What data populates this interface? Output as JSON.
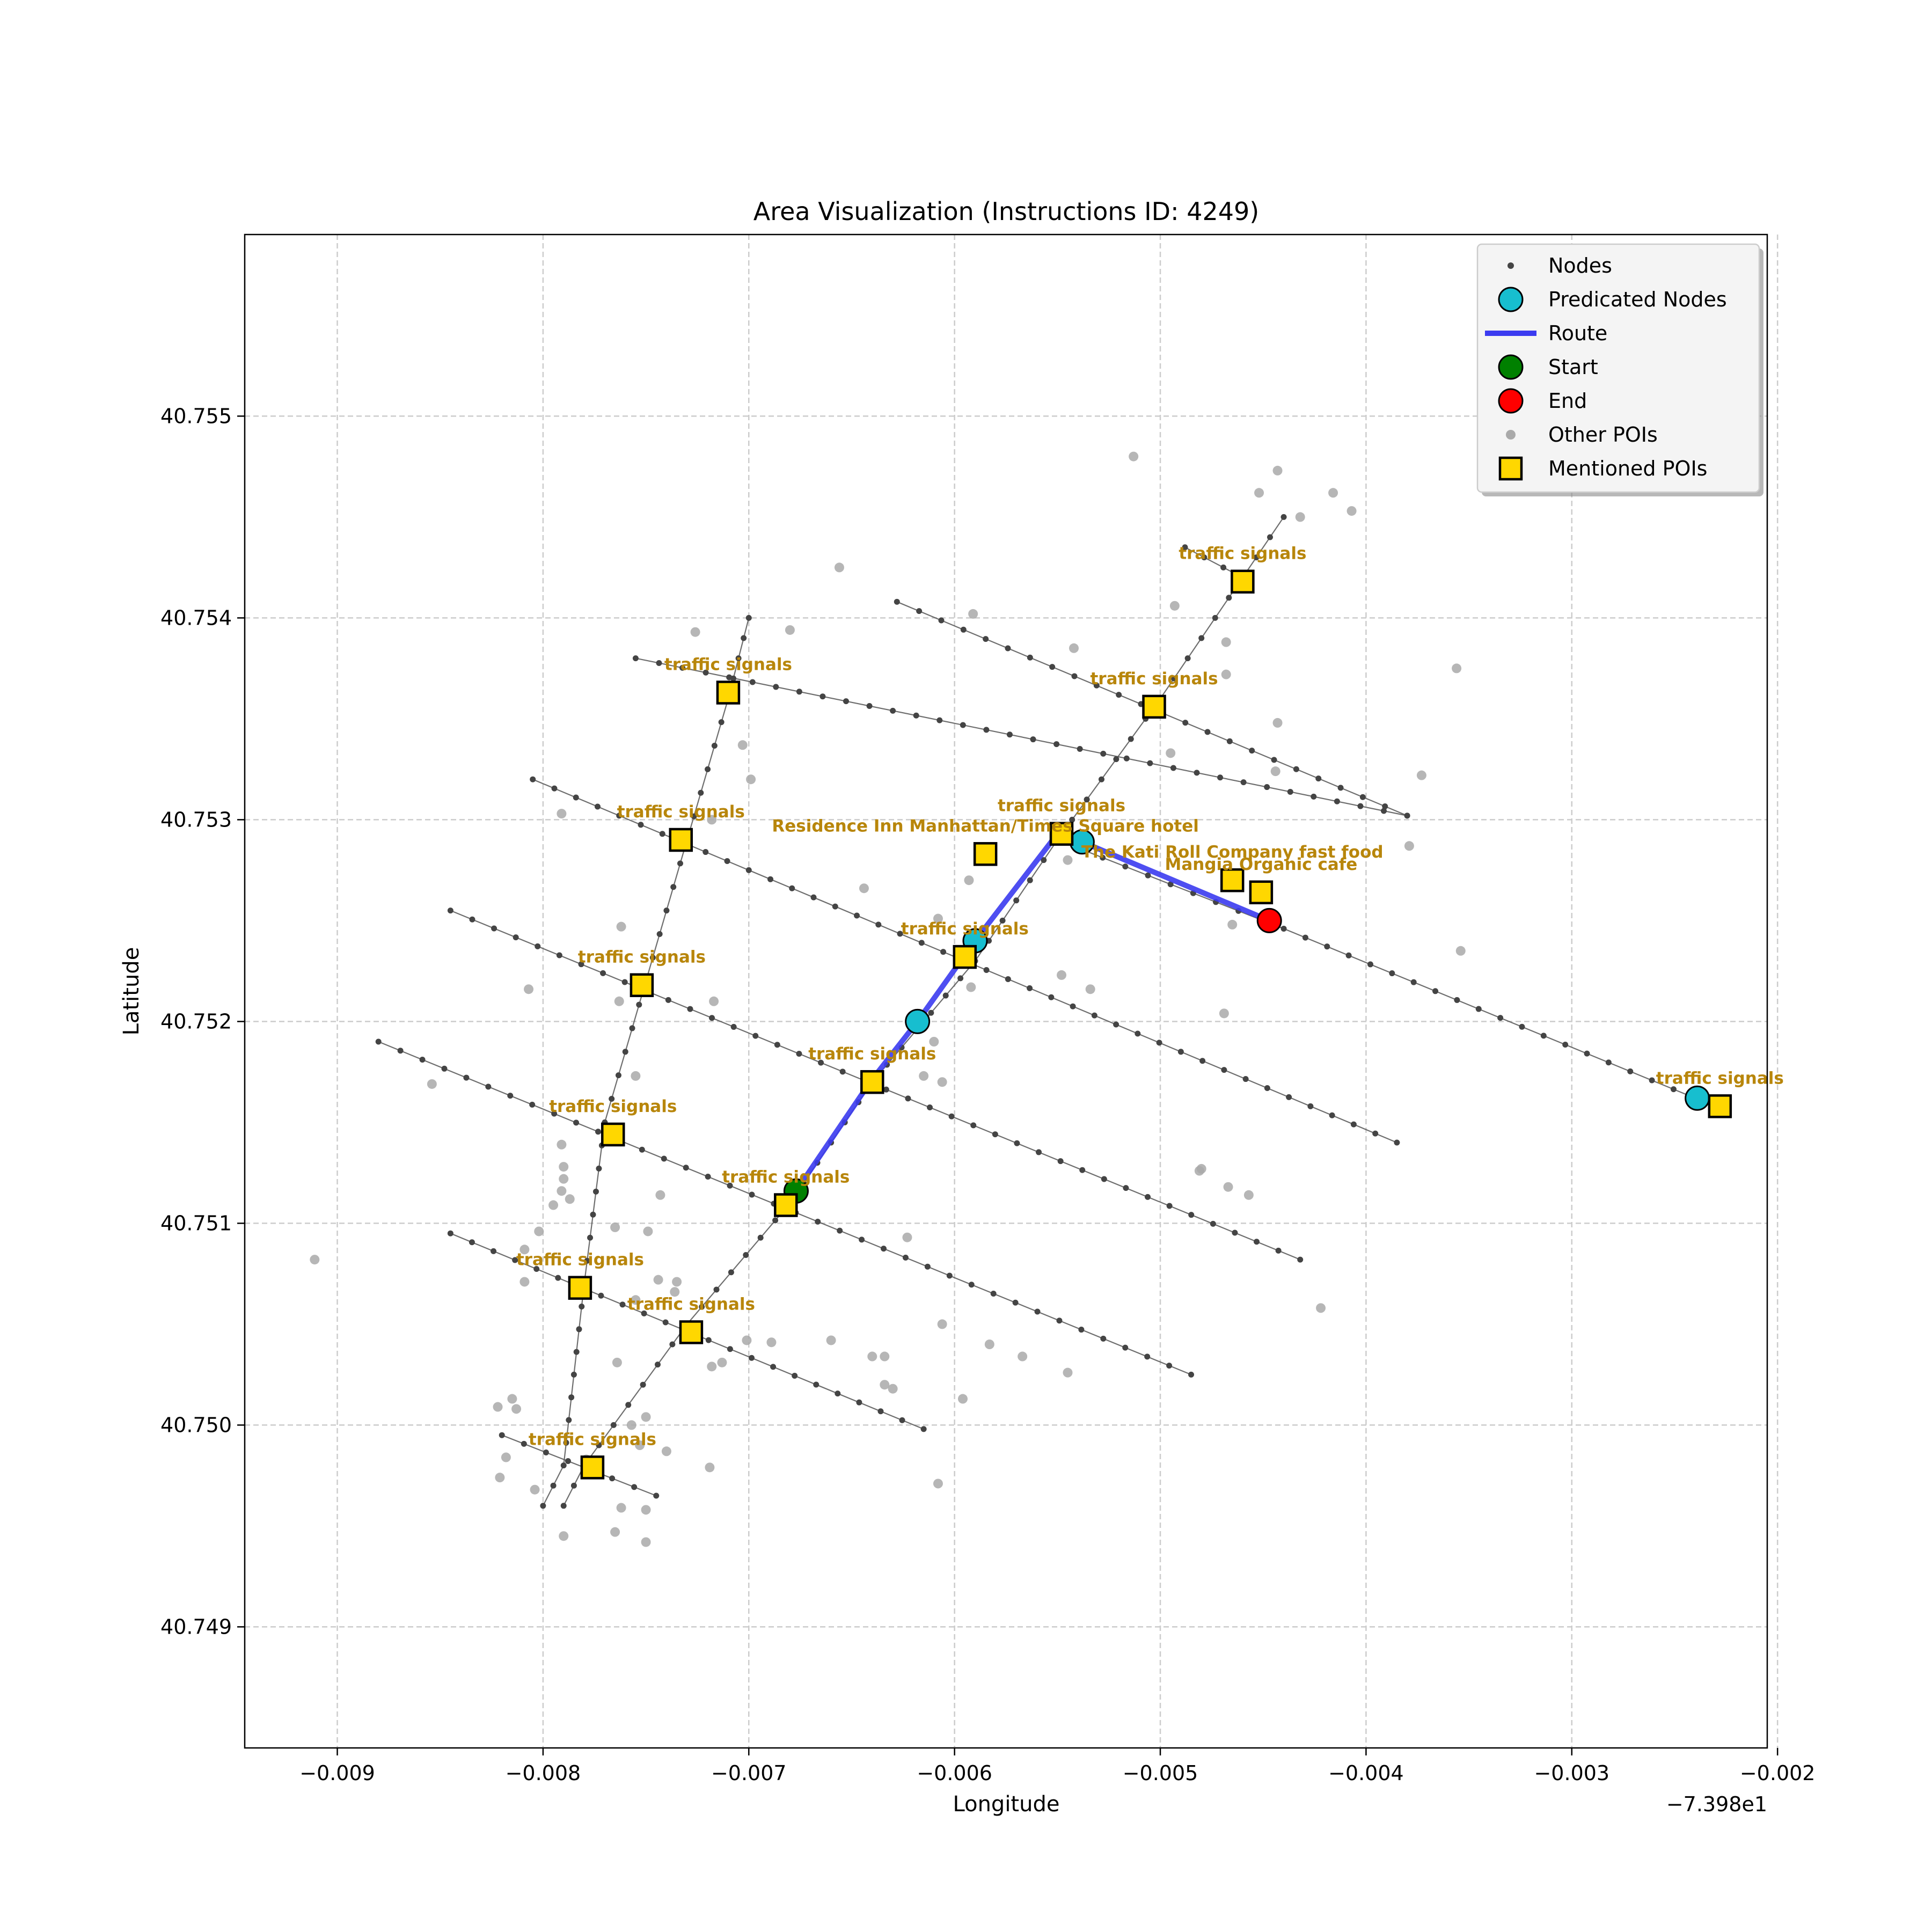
{
  "chart_data": {
    "type": "scatter",
    "title": "Area Visualization (Instructions ID: 4249)",
    "xlabel": "Longitude",
    "ylabel": "Latitude",
    "x_offset_label": "−7.398e1",
    "xlim": [
      -0.00945,
      -0.00205
    ],
    "ylim": [
      40.7484,
      40.7559
    ],
    "xticks": [
      -0.009,
      -0.008,
      -0.007,
      -0.006,
      -0.005,
      -0.004,
      -0.003,
      -0.002
    ],
    "xtick_labels": [
      "−0.009",
      "−0.008",
      "−0.007",
      "−0.006",
      "−0.005",
      "−0.004",
      "−0.003",
      "−0.002"
    ],
    "yticks": [
      40.749,
      40.75,
      40.751,
      40.752,
      40.753,
      40.754,
      40.755
    ],
    "ytick_labels": [
      "40.749",
      "40.750",
      "40.751",
      "40.752",
      "40.753",
      "40.754",
      "40.755"
    ],
    "grid": true,
    "legend_position": "top-right",
    "legend": [
      {
        "label": "Nodes",
        "marker": "dot"
      },
      {
        "label": "Predicated Nodes",
        "marker": "cyan-circle"
      },
      {
        "label": "Route",
        "marker": "line"
      },
      {
        "label": "Start",
        "marker": "green-circle"
      },
      {
        "label": "End",
        "marker": "red-circle"
      },
      {
        "label": "Other POIs",
        "marker": "gray-dot"
      },
      {
        "label": "Mentioned POIs",
        "marker": "gold-square"
      }
    ],
    "colors": {
      "node": "#444444",
      "edge": "#555555",
      "predicated": "#17becf",
      "route": "#3b3bf0",
      "start": "#008000",
      "end": "#ff0000",
      "other_poi": "#a9a9a9",
      "mentioned_poi": "#ffd700",
      "poi_label": "#b8860b",
      "grid": "#cccccc"
    },
    "streets": [
      [
        [
          -0.008,
          40.7496
        ],
        [
          -0.0079,
          40.7498
        ],
        [
          -0.0078,
          40.7507
        ],
        [
          -0.0077,
          40.7515
        ],
        [
          -0.0075,
          40.7522
        ],
        [
          -0.0073,
          40.7529
        ],
        [
          -0.0071,
          40.7536
        ],
        [
          -0.007,
          40.754
        ]
      ],
      [
        [
          -0.0079,
          40.7496
        ],
        [
          -0.0078,
          40.7498
        ],
        [
          -0.0073,
          40.7505
        ],
        [
          -0.0068,
          40.7511
        ],
        [
          -0.0064,
          40.7517
        ],
        [
          -0.0059,
          40.7523
        ],
        [
          -0.0055,
          40.7529
        ],
        [
          -0.005,
          40.7536
        ],
        [
          -0.0046,
          40.7542
        ],
        [
          -0.0044,
          40.7545
        ]
      ],
      [
        [
          -0.00805,
          40.7532
        ],
        [
          -0.00385,
          40.7514
        ]
      ],
      [
        [
          -0.00845,
          40.75255
        ],
        [
          -0.00432,
          40.75082
        ]
      ],
      [
        [
          -0.0088,
          40.7519
        ],
        [
          -0.00485,
          40.75025
        ]
      ],
      [
        [
          -0.00845,
          40.75095
        ],
        [
          -0.00615,
          40.74998
        ]
      ],
      [
        [
          -0.0082,
          40.74995
        ],
        [
          -0.00745,
          40.74965
        ]
      ],
      [
        [
          -0.00755,
          40.7538
        ],
        [
          -0.0038,
          40.75302
        ]
      ],
      [
        [
          -0.00628,
          40.75408
        ],
        [
          -0.0038,
          40.75302
        ]
      ],
      [
        [
          -0.00488,
          40.75435
        ],
        [
          -0.0046,
          40.7542
        ]
      ],
      [
        [
          -0.0055,
          40.7529
        ],
        [
          -0.0044,
          40.75246
        ],
        [
          -0.0024,
          40.75162
        ]
      ]
    ],
    "route": [
      [
        -0.00677,
        40.75116
      ],
      [
        -0.00641,
        40.7517
      ],
      [
        -0.00618,
        40.752
      ],
      [
        -0.0059,
        40.7524
      ],
      [
        -0.0055,
        40.75293
      ],
      [
        -0.00538,
        40.75289
      ],
      [
        -0.00447,
        40.7525
      ]
    ],
    "predicated_nodes": [
      [
        -0.00538,
        40.75289
      ],
      [
        -0.0059,
        40.7524
      ],
      [
        -0.00618,
        40.752
      ],
      [
        -0.00239,
        40.75162
      ]
    ],
    "start": [
      -0.00677,
      40.75116
    ],
    "end": [
      -0.00447,
      40.7525
    ],
    "mentioned_pois": [
      {
        "x": -0.0046,
        "y": 40.75418,
        "label": "traffic signals",
        "dx": 0,
        "dy": -0.00014
      },
      {
        "x": -0.00503,
        "y": 40.75356,
        "label": "traffic signals",
        "dx": 0,
        "dy": -0.00014
      },
      {
        "x": -0.0071,
        "y": 40.75363,
        "label": "traffic signals",
        "dx": 0,
        "dy": -0.00014
      },
      {
        "x": -0.00733,
        "y": 40.7529,
        "label": "traffic signals",
        "dx": 0,
        "dy": -0.00014
      },
      {
        "x": -0.00548,
        "y": 40.75293,
        "label": "traffic signals",
        "dx": 0,
        "dy": -0.00014
      },
      {
        "x": -0.00585,
        "y": 40.75283,
        "label": "Residence Inn Manhattan/Times Square    hotel",
        "dx": 0,
        "dy": -0.00014
      },
      {
        "x": -0.00465,
        "y": 40.7527,
        "label": "The Kati Roll Company fast food",
        "dx": 0,
        "dy": -0.00014
      },
      {
        "x": -0.00451,
        "y": 40.75264,
        "label": "Mangia Organic cafe",
        "dx": 0,
        "dy": -0.00014
      },
      {
        "x": -0.00595,
        "y": 40.75232,
        "label": "traffic signals",
        "dx": 0,
        "dy": -0.00014
      },
      {
        "x": -0.00752,
        "y": 40.75218,
        "label": "traffic signals",
        "dx": 0,
        "dy": -0.00014
      },
      {
        "x": -0.0064,
        "y": 40.7517,
        "label": "traffic signals",
        "dx": 0,
        "dy": -0.00014
      },
      {
        "x": -0.00766,
        "y": 40.75144,
        "label": "traffic signals",
        "dx": 0,
        "dy": -0.00014
      },
      {
        "x": -0.00682,
        "y": 40.75109,
        "label": "traffic signals",
        "dx": 0,
        "dy": -0.00014
      },
      {
        "x": -0.00782,
        "y": 40.75068,
        "label": "traffic signals",
        "dx": 0,
        "dy": -0.00014
      },
      {
        "x": -0.00728,
        "y": 40.75046,
        "label": "traffic signals",
        "dx": 0,
        "dy": -0.00014
      },
      {
        "x": -0.00776,
        "y": 40.74979,
        "label": "traffic signals",
        "dx": 0,
        "dy": -0.00014
      },
      {
        "x": -0.00228,
        "y": 40.75158,
        "label": "traffic signals",
        "dx": 0,
        "dy": -0.00014
      }
    ],
    "other_pois": [
      [
        -0.00513,
        40.7548
      ],
      [
        -0.00443,
        40.75473
      ],
      [
        -0.00452,
        40.75462
      ],
      [
        -0.00416,
        40.75462
      ],
      [
        -0.00432,
        40.7545
      ],
      [
        -0.00407,
        40.75453
      ],
      [
        -0.00656,
        40.75425
      ],
      [
        -0.00591,
        40.75402
      ],
      [
        -0.00493,
        40.75406
      ],
      [
        -0.00726,
        40.75393
      ],
      [
        -0.0068,
        40.75394
      ],
      [
        -0.00542,
        40.75385
      ],
      [
        -0.00468,
        40.75388
      ],
      [
        -0.00356,
        40.75375
      ],
      [
        -0.00468,
        40.75372
      ],
      [
        -0.00443,
        40.75348
      ],
      [
        -0.00703,
        40.75337
      ],
      [
        -0.00495,
        40.75333
      ],
      [
        -0.00444,
        40.75324
      ],
      [
        -0.00373,
        40.75322
      ],
      [
        -0.00699,
        40.7532
      ],
      [
        -0.00791,
        40.75303
      ],
      [
        -0.00718,
        40.753
      ],
      [
        -0.00545,
        40.7528
      ],
      [
        -0.00379,
        40.75287
      ],
      [
        -0.00593,
        40.7527
      ],
      [
        -0.00644,
        40.75266
      ],
      [
        -0.00608,
        40.75251
      ],
      [
        -0.00465,
        40.75248
      ],
      [
        -0.00762,
        40.75247
      ],
      [
        -0.00354,
        40.75235
      ],
      [
        -0.00548,
        40.75223
      ],
      [
        -0.00534,
        40.75216
      ],
      [
        -0.00592,
        40.75217
      ],
      [
        -0.00807,
        40.75216
      ],
      [
        -0.00717,
        40.7521
      ],
      [
        -0.00763,
        40.7521
      ],
      [
        -0.00469,
        40.75204
      ],
      [
        -0.0061,
        40.7519
      ],
      [
        -0.00615,
        40.75173
      ],
      [
        -0.00606,
        40.7517
      ],
      [
        -0.00854,
        40.75169
      ],
      [
        -0.00755,
        40.75173
      ],
      [
        -0.00791,
        40.75139
      ],
      [
        -0.0048,
        40.75127
      ],
      [
        -0.00481,
        40.75126
      ],
      [
        -0.0079,
        40.75128
      ],
      [
        -0.0079,
        40.75122
      ],
      [
        -0.00791,
        40.75116
      ],
      [
        -0.00787,
        40.75112
      ],
      [
        -0.00795,
        40.75109
      ],
      [
        -0.00743,
        40.75114
      ],
      [
        -0.00467,
        40.75118
      ],
      [
        -0.00457,
        40.75114
      ],
      [
        -0.00802,
        40.75096
      ],
      [
        -0.00765,
        40.75098
      ],
      [
        -0.00749,
        40.75096
      ],
      [
        -0.00623,
        40.75093
      ],
      [
        -0.00809,
        40.75087
      ],
      [
        -0.00809,
        40.75071
      ],
      [
        -0.00744,
        40.75072
      ],
      [
        -0.00735,
        40.75071
      ],
      [
        -0.00736,
        40.75066
      ],
      [
        -0.00422,
        40.75058
      ],
      [
        -0.00911,
        40.75082
      ],
      [
        -0.00755,
        40.75062
      ],
      [
        -0.00606,
        40.7505
      ],
      [
        -0.0066,
        40.75042
      ],
      [
        -0.00701,
        40.75042
      ],
      [
        -0.00689,
        40.75041
      ],
      [
        -0.00583,
        40.7504
      ],
      [
        -0.0064,
        40.75034
      ],
      [
        -0.00634,
        40.75034
      ],
      [
        -0.00567,
        40.75034
      ],
      [
        -0.00764,
        40.75031
      ],
      [
        -0.00713,
        40.75031
      ],
      [
        -0.00718,
        40.75029
      ],
      [
        -0.00545,
        40.75026
      ],
      [
        -0.00634,
        40.7502
      ],
      [
        -0.0063,
        40.75018
      ],
      [
        -0.00596,
        40.75013
      ],
      [
        -0.00822,
        40.75009
      ],
      [
        -0.00815,
        40.75013
      ],
      [
        -0.00813,
        40.75008
      ],
      [
        -0.0075,
        40.75004
      ],
      [
        -0.00757,
        40.75
      ],
      [
        -0.00753,
        40.7499
      ],
      [
        -0.0074,
        40.74987
      ],
      [
        -0.00818,
        40.74984
      ],
      [
        -0.00821,
        40.74974
      ],
      [
        -0.00719,
        40.74979
      ],
      [
        -0.00608,
        40.74971
      ],
      [
        -0.00804,
        40.74968
      ],
      [
        -0.00762,
        40.74959
      ],
      [
        -0.0075,
        40.74958
      ],
      [
        -0.00765,
        40.74947
      ],
      [
        -0.0079,
        40.74945
      ],
      [
        -0.0075,
        40.74942
      ],
      [
        -0.00779,
        40.74983
      ]
    ]
  }
}
